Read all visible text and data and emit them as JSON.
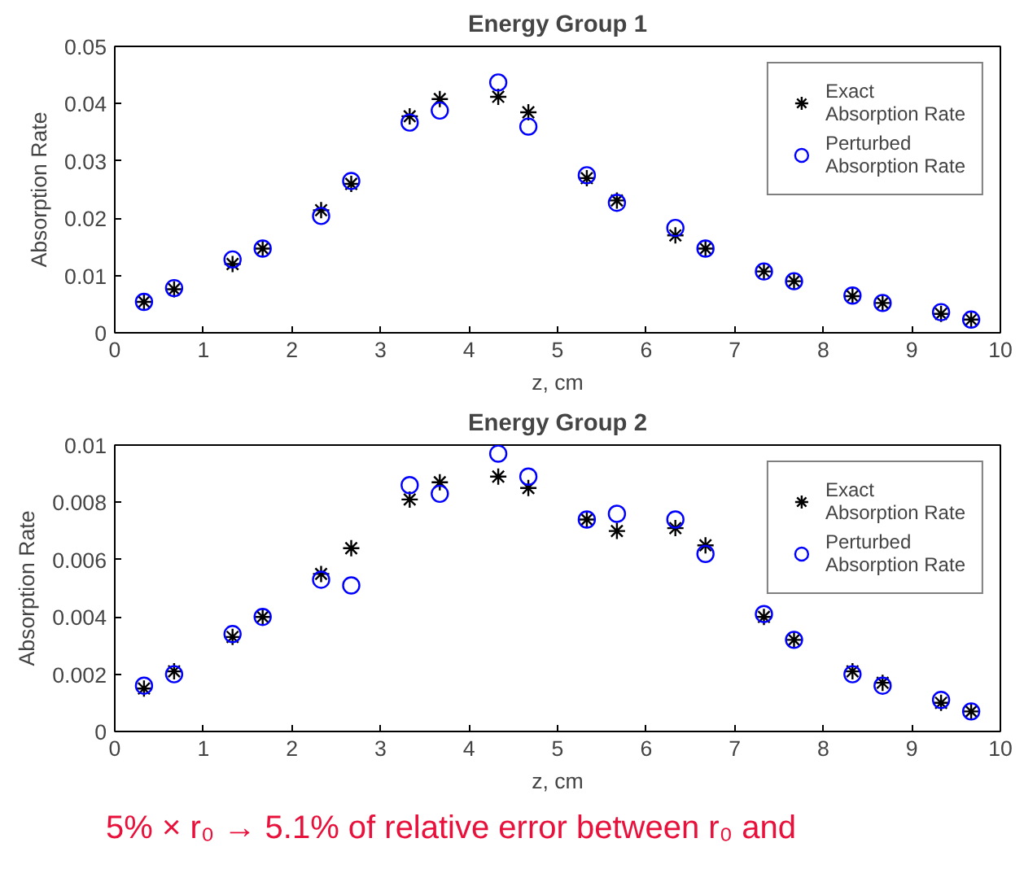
{
  "chart_data": [
    {
      "type": "scatter",
      "title": "Energy Group 1",
      "xlabel": "z, cm",
      "ylabel": "Absorption Rate",
      "x": [
        0.33,
        0.67,
        1.33,
        1.67,
        2.33,
        2.67,
        3.33,
        3.67,
        4.33,
        4.67,
        5.33,
        5.67,
        6.33,
        6.67,
        7.33,
        7.67,
        8.33,
        8.67,
        9.33,
        9.67
      ],
      "xlim": [
        0,
        10
      ],
      "xticks": [
        0,
        1,
        2,
        3,
        4,
        5,
        6,
        7,
        8,
        9,
        10
      ],
      "ylim": [
        0,
        0.05
      ],
      "yticks": [
        0,
        0.01,
        0.02,
        0.03,
        0.04,
        0.05
      ],
      "grid": false,
      "legend": "top right",
      "series": [
        {
          "name": "Exact\nAbsorption Rate",
          "color": "#000000",
          "marker": "cross",
          "values": [
            0.0054,
            0.0076,
            0.012,
            0.0147,
            0.0214,
            0.026,
            0.0378,
            0.0408,
            0.0412,
            0.0385,
            0.027,
            0.0231,
            0.017,
            0.0147,
            0.0107,
            0.009,
            0.0064,
            0.0052,
            0.0033,
            0.0023
          ]
        },
        {
          "name": "Perturbed\nAbsorption Rate",
          "color": "#0000ff",
          "marker": "circle",
          "values": [
            0.0054,
            0.0078,
            0.0128,
            0.0147,
            0.0204,
            0.0265,
            0.0367,
            0.0388,
            0.0437,
            0.036,
            0.0275,
            0.0227,
            0.0183,
            0.0147,
            0.0107,
            0.009,
            0.0065,
            0.0052,
            0.0036,
            0.0023
          ]
        }
      ]
    },
    {
      "type": "scatter",
      "title": "Energy Group 2",
      "xlabel": "z, cm",
      "ylabel": "Absorption Rate",
      "x": [
        0.33,
        0.67,
        1.33,
        1.67,
        2.33,
        2.67,
        3.33,
        3.67,
        4.33,
        4.67,
        5.33,
        5.67,
        6.33,
        6.67,
        7.33,
        7.67,
        8.33,
        8.67,
        9.33,
        9.67
      ],
      "xlim": [
        0,
        10
      ],
      "xticks": [
        0,
        1,
        2,
        3,
        4,
        5,
        6,
        7,
        8,
        9,
        10
      ],
      "ylim": [
        0,
        0.01
      ],
      "yticks": [
        0,
        0.002,
        0.004,
        0.006,
        0.008,
        0.01
      ],
      "grid": false,
      "legend": "top right",
      "annotations": [
        "5% × r₀ → 5.1% of relative error between r₀ and"
      ],
      "series": [
        {
          "name": "Exact\nAbsorption Rate",
          "color": "#000000",
          "marker": "cross",
          "values": [
            0.0015,
            0.0021,
            0.0033,
            0.004,
            0.0055,
            0.0064,
            0.0081,
            0.0087,
            0.0089,
            0.0085,
            0.0074,
            0.007,
            0.0071,
            0.0065,
            0.004,
            0.0032,
            0.0021,
            0.0017,
            0.001,
            0.0007
          ]
        },
        {
          "name": "Perturbed\nAbsorption Rate",
          "color": "#0000ff",
          "marker": "circle",
          "values": [
            0.0016,
            0.002,
            0.0034,
            0.004,
            0.0053,
            0.0051,
            0.0086,
            0.0083,
            0.0097,
            0.0089,
            0.0074,
            0.0076,
            0.0074,
            0.0062,
            0.0041,
            0.0032,
            0.002,
            0.0016,
            0.0011,
            0.0007
          ]
        }
      ]
    }
  ]
}
